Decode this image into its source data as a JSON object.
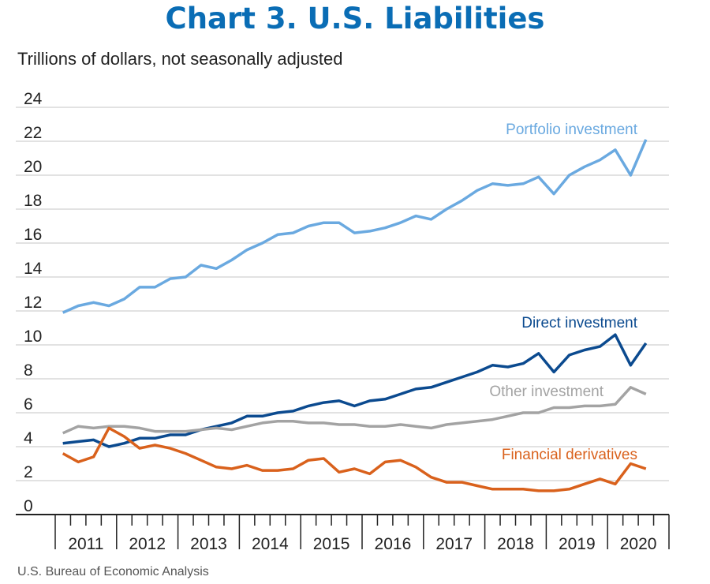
{
  "title": "Chart 3. U.S. Liabilities",
  "subtitle": "Trillions of dollars, not seasonally adjusted",
  "source": "U.S. Bureau of Economic Analysis",
  "chart_data": {
    "type": "line",
    "ylim": [
      0,
      24
    ],
    "yticks": [
      0,
      2,
      4,
      6,
      8,
      10,
      12,
      14,
      16,
      18,
      20,
      22,
      24
    ],
    "years": [
      "2011",
      "2012",
      "2013",
      "2014",
      "2015",
      "2016",
      "2017",
      "2018",
      "2019",
      "2020"
    ],
    "grid": "horizontal",
    "series": [
      {
        "name": "Portfolio investment",
        "color": "#6aa9e0",
        "values": [
          11.9,
          12.3,
          12.5,
          12.3,
          12.7,
          13.4,
          13.4,
          13.9,
          14.0,
          14.7,
          14.5,
          15.0,
          15.6,
          16.0,
          16.5,
          16.6,
          17.0,
          17.2,
          17.2,
          16.6,
          16.7,
          16.9,
          17.2,
          17.6,
          17.4,
          18.0,
          18.5,
          19.1,
          19.5,
          19.4,
          19.5,
          19.9,
          18.9,
          20.0,
          20.5,
          20.9,
          21.5,
          20.0,
          22.1
        ]
      },
      {
        "name": "Direct investment",
        "color": "#0b4a8f",
        "values": [
          4.2,
          4.3,
          4.4,
          4.0,
          4.2,
          4.5,
          4.5,
          4.7,
          4.7,
          5.0,
          5.2,
          5.4,
          5.8,
          5.8,
          6.0,
          6.1,
          6.4,
          6.6,
          6.7,
          6.4,
          6.7,
          6.8,
          7.1,
          7.4,
          7.5,
          7.8,
          8.1,
          8.4,
          8.8,
          8.7,
          8.9,
          9.5,
          8.4,
          9.4,
          9.7,
          9.9,
          10.6,
          8.8,
          10.1
        ]
      },
      {
        "name": "Other investment",
        "color": "#a3a3a3",
        "values": [
          4.8,
          5.2,
          5.1,
          5.2,
          5.2,
          5.1,
          4.9,
          4.9,
          4.9,
          5.0,
          5.1,
          5.0,
          5.2,
          5.4,
          5.5,
          5.5,
          5.4,
          5.4,
          5.3,
          5.3,
          5.2,
          5.2,
          5.3,
          5.2,
          5.1,
          5.3,
          5.4,
          5.5,
          5.6,
          5.8,
          6.0,
          6.0,
          6.3,
          6.3,
          6.4,
          6.4,
          6.5,
          7.5,
          7.1
        ]
      },
      {
        "name": "Financial derivatives",
        "color": "#d9611c",
        "values": [
          3.6,
          3.1,
          3.4,
          5.1,
          4.6,
          3.9,
          4.1,
          3.9,
          3.6,
          3.2,
          2.8,
          2.7,
          2.9,
          2.6,
          2.6,
          2.7,
          3.2,
          3.3,
          2.5,
          2.7,
          2.4,
          3.1,
          3.2,
          2.8,
          2.2,
          1.9,
          1.9,
          1.7,
          1.5,
          1.5,
          1.5,
          1.4,
          1.4,
          1.5,
          1.8,
          2.1,
          1.8,
          3.0,
          2.7
        ]
      }
    ]
  }
}
